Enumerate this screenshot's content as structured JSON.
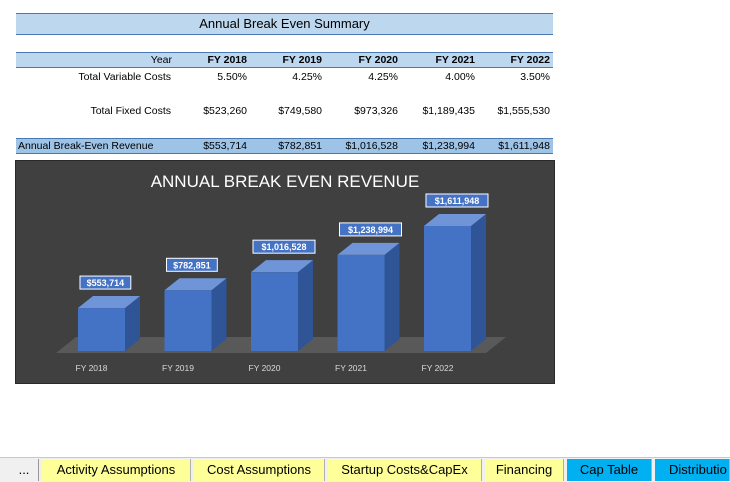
{
  "sheet": {
    "title": "Annual Break Even Summary",
    "year_label": "Year",
    "years": [
      "FY 2018",
      "FY 2019",
      "FY 2020",
      "FY 2021",
      "FY 2022"
    ],
    "rows": [
      {
        "label": "Total Variable Costs",
        "values": [
          "5.50%",
          "4.25%",
          "4.25%",
          "4.00%",
          "3.50%"
        ]
      },
      {
        "label": "Total Fixed Costs",
        "values": [
          "$523,260",
          "$749,580",
          "$973,326",
          "$1,189,435",
          "$1,555,530"
        ]
      }
    ],
    "revenue_row": {
      "label": "Annual Break-Even Revenue",
      "values": [
        "$553,714",
        "$782,851",
        "$1,016,528",
        "$1,238,994",
        "$1,611,948"
      ]
    }
  },
  "chart_data": {
    "type": "bar",
    "title": "ANNUAL BREAK EVEN REVENUE",
    "categories": [
      "FY 2018",
      "FY 2019",
      "FY 2020",
      "FY 2021",
      "FY 2022"
    ],
    "values": [
      553714,
      782851,
      1016528,
      1238994,
      1611948
    ],
    "data_labels": [
      "$553,714",
      "$782,851",
      "$1,016,528",
      "$1,238,994",
      "$1,611,948"
    ],
    "ylim": [
      0,
      1611948
    ],
    "grid": false,
    "legend": "none",
    "colors": {
      "bar": "#4472c4",
      "background": "#404040"
    }
  },
  "tabs": {
    "more": "...",
    "items": [
      {
        "label": "Activity Assumptions",
        "color": "#ffff99"
      },
      {
        "label": "Cost Assumptions",
        "color": "#ffff99"
      },
      {
        "label": "Startup Costs&CapEx",
        "color": "#ffff99"
      },
      {
        "label": "Financing",
        "color": "#ffff99"
      },
      {
        "label": "Cap Table",
        "color": "#00b0f0"
      },
      {
        "label": "Distributio",
        "color": "#00b0f0"
      }
    ]
  }
}
